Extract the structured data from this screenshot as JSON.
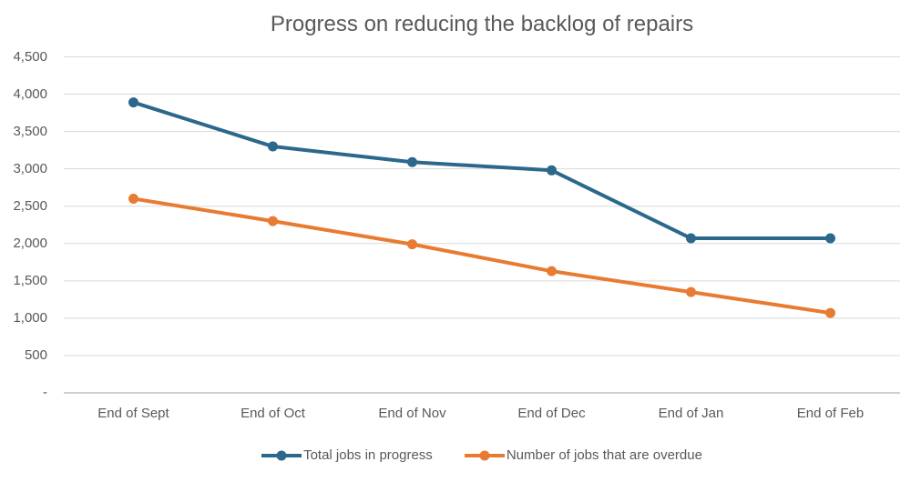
{
  "chart_data": {
    "type": "line",
    "title": "Progress on reducing the backlog of repairs",
    "categories": [
      "End of Sept",
      "End of Oct",
      "End of Nov",
      "End of Dec",
      "End of Jan",
      "End of Feb"
    ],
    "series": [
      {
        "name": "Total jobs in progress",
        "color": "#2B688C",
        "values": [
          3890,
          3300,
          3090,
          2980,
          2070,
          2070
        ]
      },
      {
        "name": "Number of jobs that are overdue",
        "color": "#E87B31",
        "values": [
          2600,
          2300,
          1990,
          1630,
          1350,
          1070
        ]
      }
    ],
    "ylim": [
      0,
      4500
    ],
    "ytick_step": 500,
    "ytick_labels": [
      "-",
      "500",
      "1,000",
      "1,500",
      "2,000",
      "2,500",
      "3,000",
      "3,500",
      "4,000",
      "4,500"
    ],
    "grid": true,
    "legend_position": "bottom",
    "colors": {
      "gridline": "#D9D9D9",
      "axis_line": "#C0C0C0",
      "text": "#595959"
    }
  }
}
